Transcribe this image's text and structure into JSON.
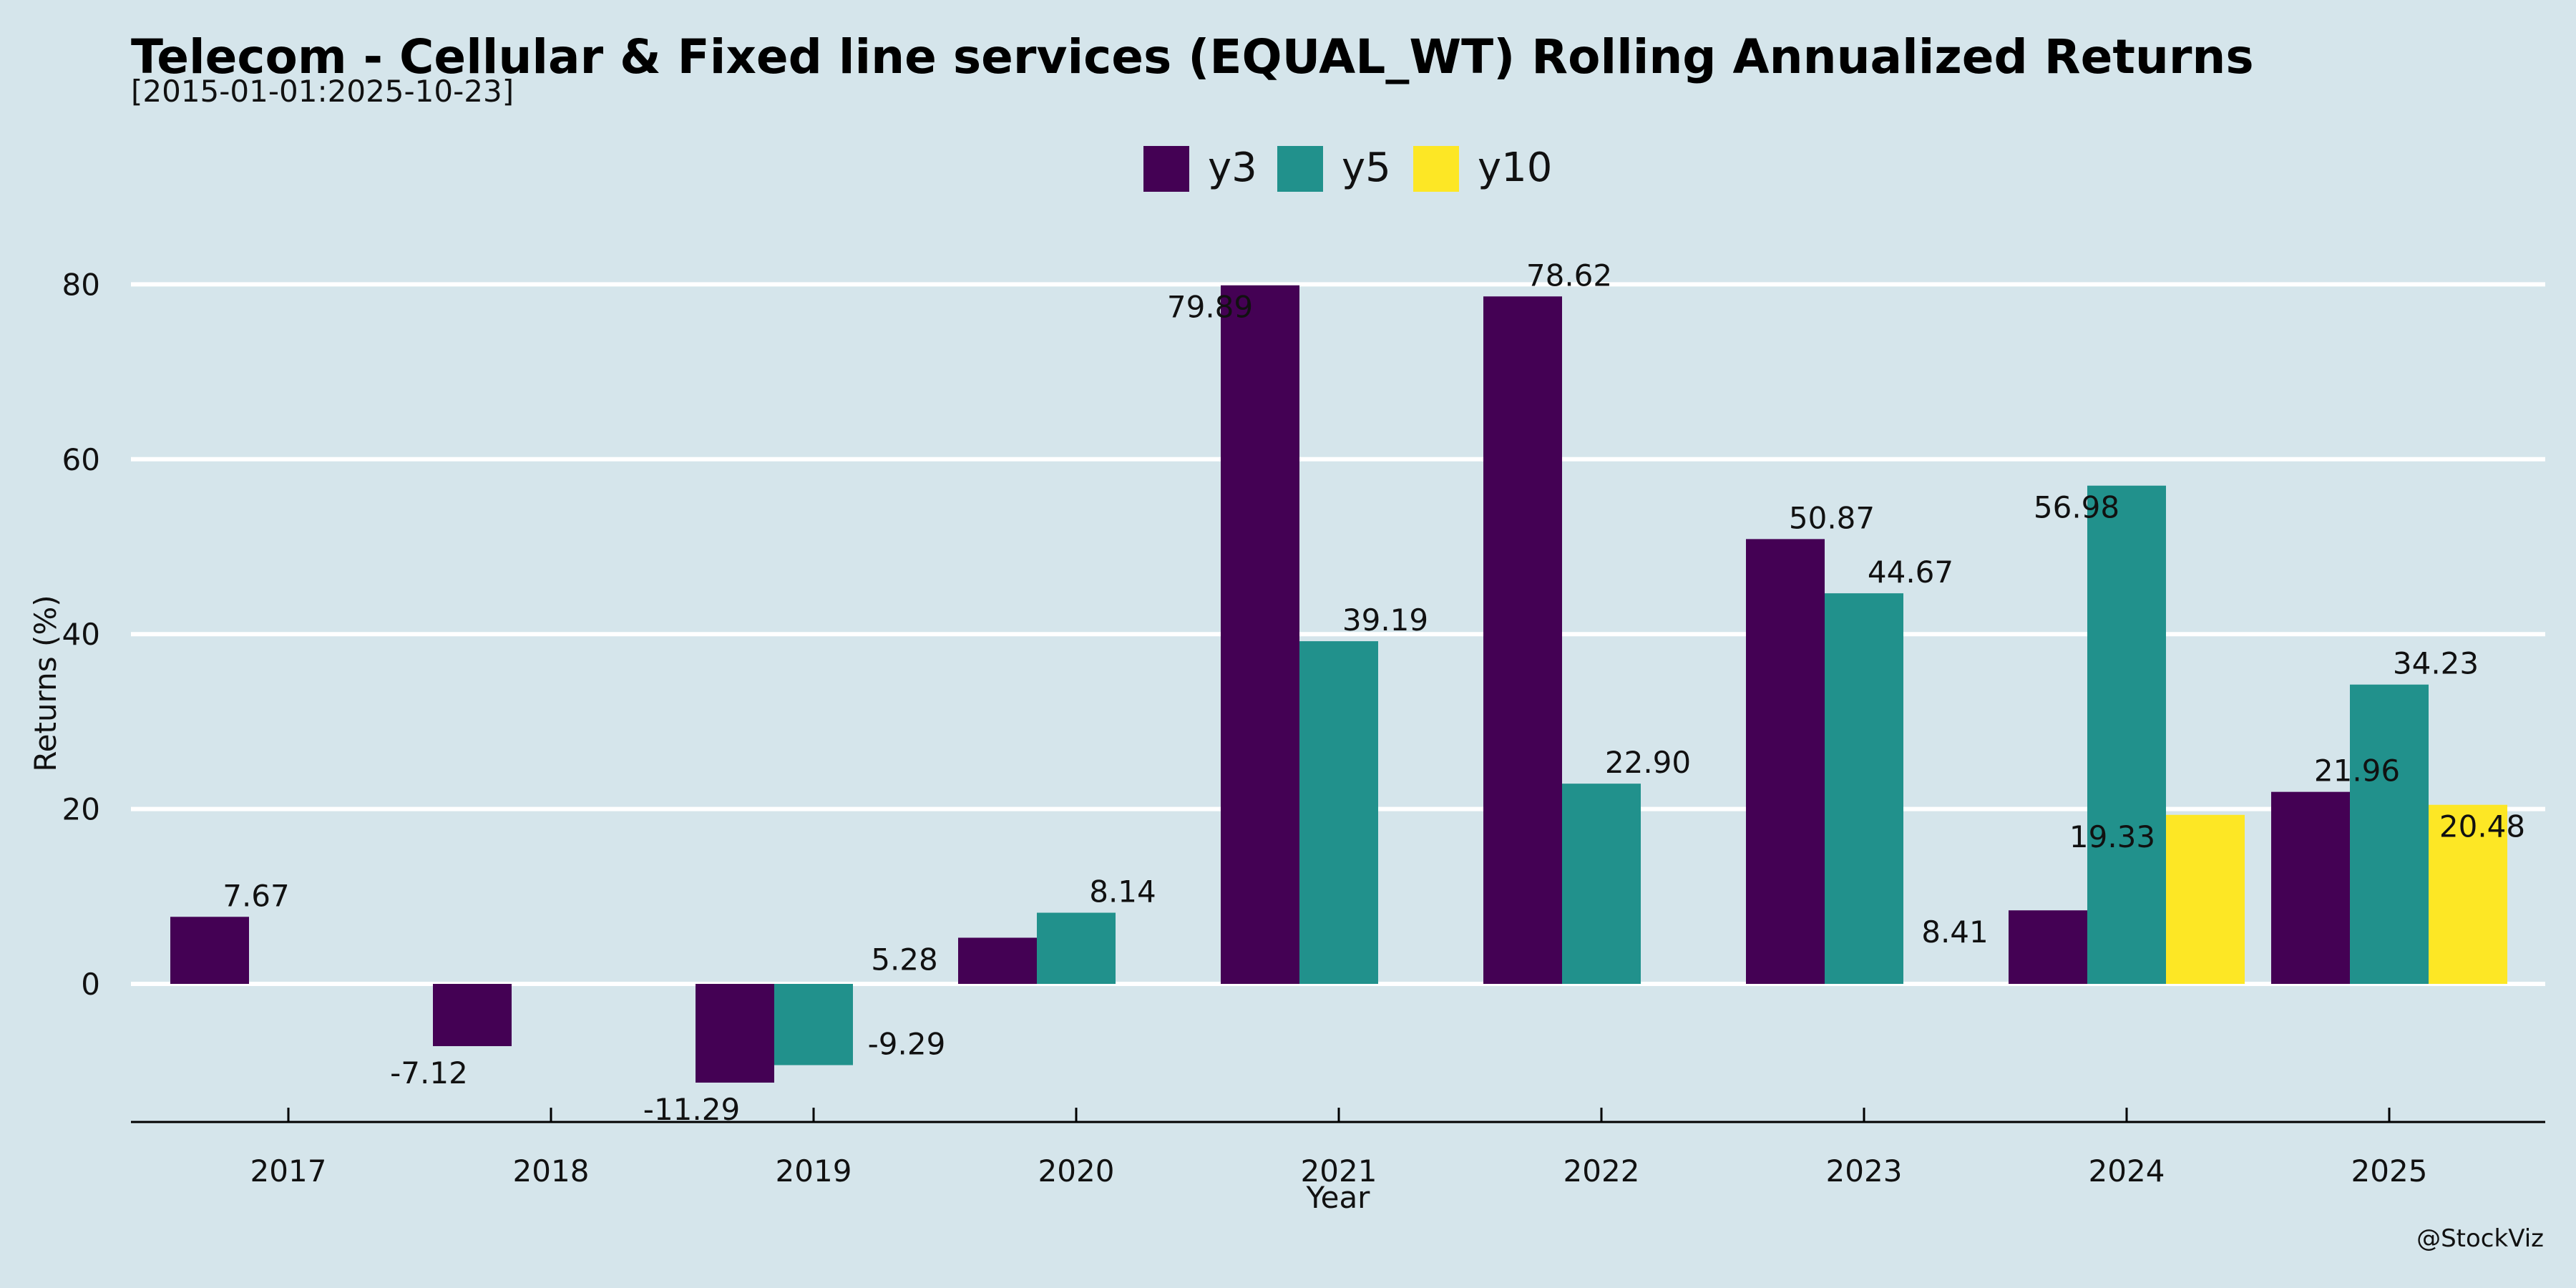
{
  "chart_data": {
    "type": "bar",
    "title": "Telecom - Cellular & Fixed line services (EQUAL_WT) Rolling Annualized Returns",
    "subtitle": "[2015-01-01:2025-10-23]",
    "xlabel": "Year",
    "ylabel": "Returns (%)",
    "credit": "@StockViz",
    "categories": [
      "2017",
      "2018",
      "2019",
      "2020",
      "2021",
      "2022",
      "2023",
      "2024",
      "2025"
    ],
    "yticks": [
      0,
      20,
      40,
      60,
      80
    ],
    "ylim": [
      -16,
      90
    ],
    "grid": true,
    "legend_position": "top-center",
    "series": [
      {
        "name": "y3",
        "color": "#440154",
        "values": [
          7.67,
          -7.12,
          -11.29,
          5.28,
          79.89,
          78.62,
          50.87,
          8.41,
          21.96
        ],
        "labels": [
          "7.67",
          "-7.12",
          "-11.29",
          "5.28",
          "79.89",
          "78.62",
          "50.87",
          "8.41",
          "21.96"
        ]
      },
      {
        "name": "y5",
        "color": "#21918c",
        "values": [
          null,
          null,
          -9.29,
          8.14,
          39.19,
          22.9,
          44.67,
          56.98,
          34.23
        ],
        "labels": [
          null,
          null,
          "-9.29",
          "8.14",
          "39.19",
          "22.90",
          "44.67",
          "56.98",
          "34.23"
        ]
      },
      {
        "name": "y10",
        "color": "#fde725",
        "values": [
          null,
          null,
          null,
          null,
          null,
          null,
          null,
          19.33,
          20.48
        ],
        "labels": [
          null,
          null,
          null,
          null,
          null,
          null,
          null,
          "19.33",
          "20.48"
        ]
      }
    ]
  }
}
